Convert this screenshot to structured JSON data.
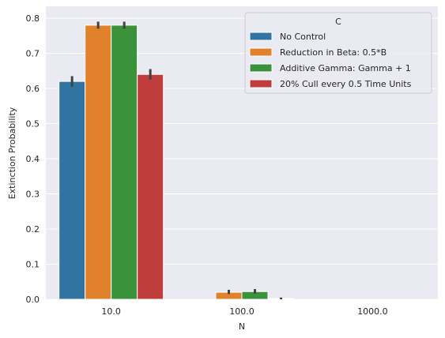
{
  "chart_data": {
    "type": "bar",
    "xlabel": "N",
    "ylabel": "Extinction Probability",
    "categories": [
      "10.0",
      "100.0",
      "1000.0"
    ],
    "ylim": [
      0,
      0.82
    ],
    "yticks": [
      0.0,
      0.1,
      0.2,
      0.3,
      0.4,
      0.5,
      0.6,
      0.7,
      0.8
    ],
    "ytick_labels": [
      "0.0",
      "0.1",
      "0.2",
      "0.3",
      "0.4",
      "0.5",
      "0.6",
      "0.7",
      "0.8"
    ],
    "grid": true,
    "legend_title": "C",
    "legend_position": "top-right",
    "series": [
      {
        "name": "No Control",
        "color": "#3274a1",
        "values": [
          0.62,
          0.0,
          0.0
        ],
        "err_low": [
          0.605,
          0.0,
          0.0
        ],
        "err_high": [
          0.635,
          0.0,
          0.0
        ]
      },
      {
        "name": "Reduction in Beta: 0.5*B",
        "color": "#e1812c",
        "values": [
          0.78,
          0.02,
          0.0
        ],
        "err_low": [
          0.77,
          0.015,
          0.0
        ],
        "err_high": [
          0.79,
          0.027,
          0.0
        ]
      },
      {
        "name": "Additive Gamma: Gamma + 1",
        "color": "#3a923a",
        "values": [
          0.78,
          0.022,
          0.0
        ],
        "err_low": [
          0.77,
          0.016,
          0.0
        ],
        "err_high": [
          0.79,
          0.029,
          0.0
        ]
      },
      {
        "name": "20% Cull every 0.5 Time Units",
        "color": "#c03d3e",
        "values": [
          0.64,
          0.002,
          0.0
        ],
        "err_low": [
          0.625,
          0.0,
          0.0
        ],
        "err_high": [
          0.655,
          0.005,
          0.0
        ]
      }
    ]
  }
}
